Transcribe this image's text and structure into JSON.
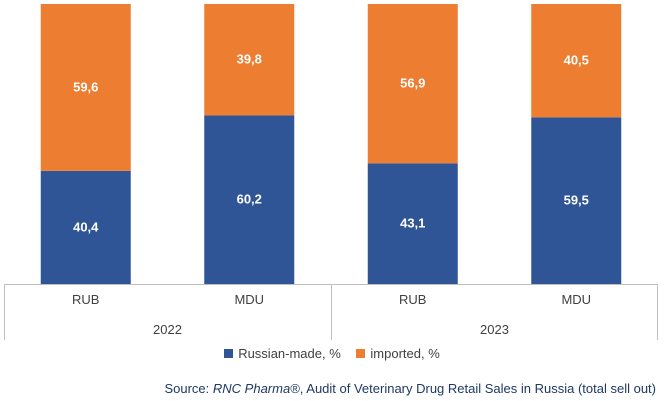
{
  "chart_data": {
    "type": "bar",
    "stacked": true,
    "percent_stacked": true,
    "groups": [
      {
        "label": "2022",
        "categories": [
          "RUB",
          "MDU"
        ]
      },
      {
        "label": "2023",
        "categories": [
          "RUB",
          "MDU"
        ]
      }
    ],
    "categories": [
      "RUB",
      "MDU",
      "RUB",
      "MDU"
    ],
    "series": [
      {
        "name": "Russian-made, %",
        "values": [
          40.4,
          60.2,
          43.1,
          59.5
        ],
        "labels": [
          "40,4",
          "60,2",
          "43,1",
          "59,5"
        ],
        "color": "#2f5597"
      },
      {
        "name": "imported, %",
        "values": [
          59.6,
          39.8,
          56.9,
          40.5
        ],
        "labels": [
          "59,6",
          "39,8",
          "56,9",
          "40,5"
        ],
        "color": "#ed7d31"
      }
    ],
    "ylim": [
      0,
      100
    ],
    "legend": "bottom",
    "grid": false
  },
  "source": {
    "prefix": "Source: ",
    "brand": "RNC Pharma®",
    "rest": ", Audit of Veterinary Drug Retail Sales in Russia (total sell out)"
  }
}
